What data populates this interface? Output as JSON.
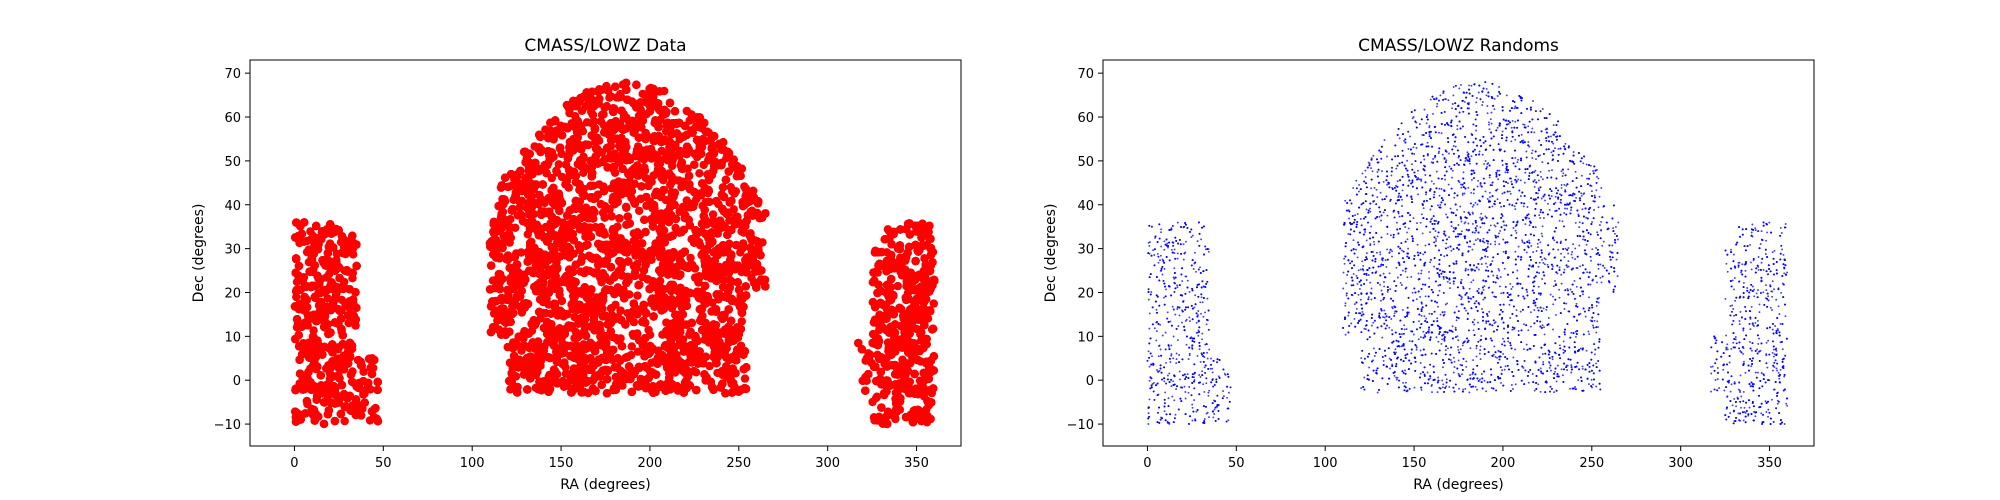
{
  "chart_data": [
    {
      "type": "scatter",
      "title": "CMASS/LOWZ Data",
      "xlabel": "RA (degrees)",
      "ylabel": "Dec (degrees)",
      "xlim": [
        -25,
        375
      ],
      "ylim": [
        -15,
        73
      ],
      "xticks": [
        "0",
        "50",
        "100",
        "150",
        "200",
        "250",
        "300",
        "350"
      ],
      "yticks": [
        "−10",
        "0",
        "10",
        "20",
        "30",
        "40",
        "50",
        "60",
        "70"
      ],
      "grid": false,
      "series": [
        {
          "color": "#ff0000",
          "marker": "dense-filled",
          "regions": [
            {
              "ra": [
                0,
                35
              ],
              "dec": [
                -10,
                36
              ]
            },
            {
              "ra": [
                0,
                47
              ],
              "dec": [
                -10,
                5
              ]
            },
            {
              "ra": [
                110,
                265
              ],
              "dec": [
                -3,
                68
              ]
            },
            {
              "ra": [
                317,
                360
              ],
              "dec": [
                -3,
                10
              ]
            },
            {
              "ra": [
                325,
                360
              ],
              "dec": [
                -10,
                36
              ]
            }
          ]
        }
      ]
    },
    {
      "type": "scatter",
      "title": "CMASS/LOWZ Randoms",
      "xlabel": "RA (degrees)",
      "ylabel": "Dec (degrees)",
      "xlim": [
        -25,
        375
      ],
      "ylim": [
        -15,
        73
      ],
      "xticks": [
        "0",
        "50",
        "100",
        "150",
        "200",
        "250",
        "300",
        "350"
      ],
      "yticks": [
        "−10",
        "0",
        "10",
        "20",
        "30",
        "40",
        "50",
        "60",
        "70"
      ],
      "grid": false,
      "series": [
        {
          "color": "#0000ff",
          "marker": "sparse-points",
          "regions": [
            {
              "ra": [
                0,
                35
              ],
              "dec": [
                -10,
                36
              ]
            },
            {
              "ra": [
                0,
                47
              ],
              "dec": [
                -10,
                5
              ]
            },
            {
              "ra": [
                110,
                265
              ],
              "dec": [
                -3,
                68
              ]
            },
            {
              "ra": [
                317,
                360
              ],
              "dec": [
                -3,
                10
              ]
            },
            {
              "ra": [
                325,
                360
              ],
              "dec": [
                -10,
                36
              ]
            }
          ]
        }
      ]
    }
  ]
}
